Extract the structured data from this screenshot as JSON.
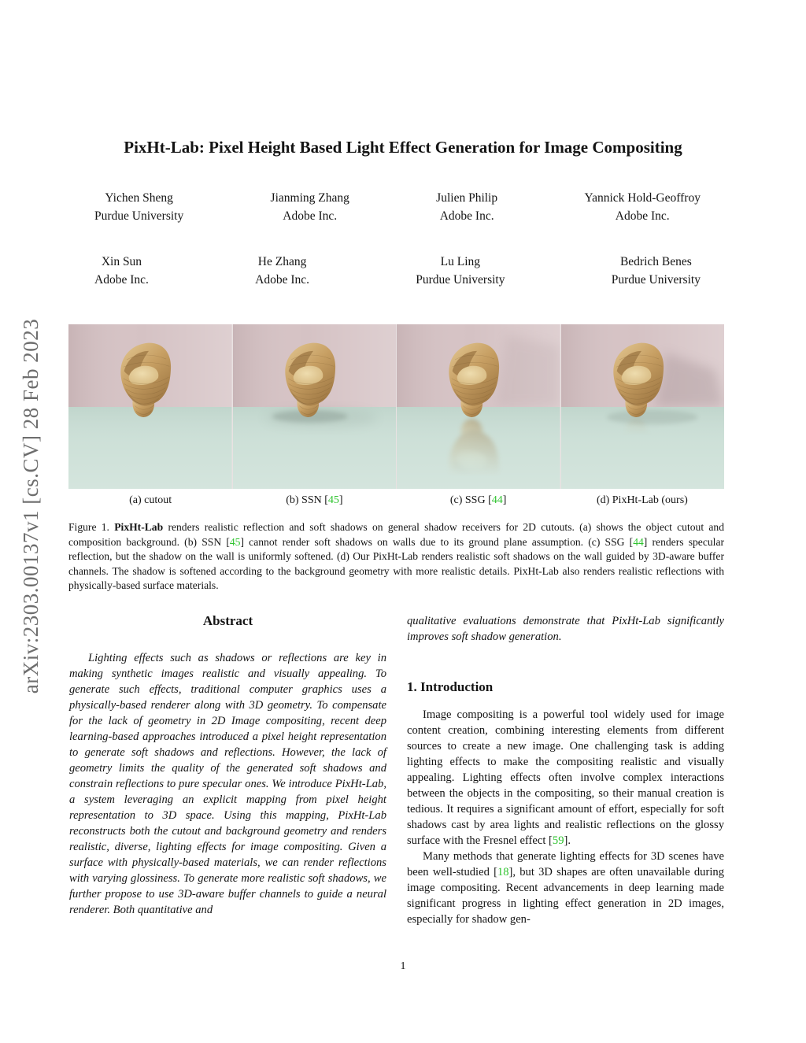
{
  "sidebar": {
    "text": "arXiv:2303.00137v1  [cs.CV]  28 Feb 2023",
    "color": "#6e6e6e"
  },
  "title": "PixHt-Lab: Pixel Height Based Light Effect Generation for Image Compositing",
  "authors": {
    "row1": [
      {
        "name": "Yichen Sheng",
        "affiliation": "Purdue University"
      },
      {
        "name": "Jianming Zhang",
        "affiliation": "Adobe Inc."
      },
      {
        "name": "Julien Philip",
        "affiliation": "Adobe Inc."
      },
      {
        "name": "Yannick Hold-Geoffroy",
        "affiliation": "Adobe Inc."
      }
    ],
    "row2": [
      {
        "name": "Xin Sun",
        "affiliation": "Adobe Inc."
      },
      {
        "name": "He Zhang",
        "affiliation": "Adobe Inc."
      },
      {
        "name": "Lu Ling",
        "affiliation": "Purdue University"
      },
      {
        "name": "Bedrich Benes",
        "affiliation": "Purdue University"
      }
    ]
  },
  "figure": {
    "colors": {
      "wall": "#d5c2c4",
      "floor": "#cbdfd6",
      "chair_light": "#dfc28c",
      "chair_mid": "#c79f63",
      "chair_dark": "#a07944"
    },
    "panels": [
      {
        "id": "a",
        "caption_segments": [
          {
            "text": "(a) cutout"
          }
        ]
      },
      {
        "id": "b",
        "caption_segments": [
          {
            "text": "(b) SSN ["
          },
          {
            "text": "45",
            "style": "ref"
          },
          {
            "text": "]"
          }
        ]
      },
      {
        "id": "c",
        "caption_segments": [
          {
            "text": "(c) SSG ["
          },
          {
            "text": "44",
            "style": "ref"
          },
          {
            "text": "]"
          }
        ]
      },
      {
        "id": "d",
        "caption_segments": [
          {
            "text": "(d) PixHt-Lab (ours)"
          }
        ]
      }
    ],
    "caption_segments": [
      {
        "text": "Figure 1.  "
      },
      {
        "text": "PixHt-Lab",
        "style": "bold"
      },
      {
        "text": " renders realistic reflection and soft shadows on general shadow receivers for 2D cutouts. (a) shows the object cutout and composition background. (b) SSN ["
      },
      {
        "text": "45",
        "style": "ref"
      },
      {
        "text": "] cannot render soft shadows on walls due to its ground plane assumption. (c) SSG ["
      },
      {
        "text": "44",
        "style": "ref"
      },
      {
        "text": "] renders specular reflection, but the shadow on the wall is uniformly softened. (d) Our PixHt-Lab renders realistic soft shadows on the wall guided by 3D-aware buffer channels. The shadow is softened according to the background geometry with more realistic details. PixHt-Lab also renders realistic reflections with physically-based surface materials."
      }
    ]
  },
  "abstract": {
    "heading": "Abstract",
    "part1": "Lighting effects such as shadows or reflections are key in making synthetic images realistic and visually appealing. To generate such effects, traditional computer graphics uses a physically-based renderer along with 3D geometry. To compensate for the lack of geometry in 2D Image compositing, recent deep learning-based approaches introduced a pixel height representation to generate soft shadows and reflections. However, the lack of geometry limits the quality of the generated soft shadows and constrain reflections to pure specular ones. We introduce PixHt-Lab, a system leveraging an explicit mapping from pixel height representation to 3D space. Using this mapping, PixHt-Lab reconstructs both the cutout and background geometry and renders realistic, diverse, lighting effects for image compositing. Given a surface with physically-based materials, we can render reflections with varying glossiness. To generate more realistic soft shadows, we further propose to use 3D-aware buffer channels to guide a neural renderer. Both quantitative and",
    "part2": "qualitative evaluations demonstrate that PixHt-Lab significantly improves soft shadow generation."
  },
  "introduction": {
    "heading": "1. Introduction",
    "para1_segments": [
      {
        "text": "Image compositing is a powerful tool widely used for image content creation, combining interesting elements from different sources to create a new image. One challenging task is adding lighting effects to make the compositing realistic and visually appealing. Lighting effects often involve complex interactions between the objects in the compositing, so their manual creation is tedious. It requires a significant amount of effort, especially for soft shadows cast by area lights and realistic reflections on the glossy surface with the Fresnel effect ["
      },
      {
        "text": "59",
        "style": "ref"
      },
      {
        "text": "]."
      }
    ],
    "para2_segments": [
      {
        "text": "Many methods that generate lighting effects for 3D scenes have been well-studied ["
      },
      {
        "text": "18",
        "style": "ref"
      },
      {
        "text": "], but 3D shapes are often unavailable during image compositing. Recent advancements in deep learning made significant progress in lighting effect generation in 2D images, especially for shadow gen-"
      }
    ]
  },
  "page": {
    "number": "1"
  },
  "colors": {
    "citation_green": "#2dc32d",
    "text": "#141414"
  }
}
